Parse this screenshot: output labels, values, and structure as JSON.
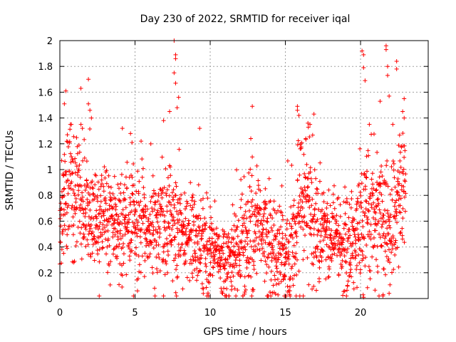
{
  "chart_data": {
    "type": "scatter",
    "title": "Day 230 of 2022, SRMTID for receiver iqal",
    "xlabel": "GPS time / hours",
    "ylabel": "SRMTID / TECUs",
    "xlim": [
      0,
      24.5
    ],
    "ylim": [
      0,
      2
    ],
    "xticks": [
      0,
      5,
      10,
      15,
      20
    ],
    "xtick_labels": [
      "0",
      "5",
      "10",
      "15",
      "20"
    ],
    "yticks": [
      0,
      0.2,
      0.4,
      0.6,
      0.8,
      1,
      1.2,
      1.4,
      1.6,
      1.8,
      2
    ],
    "ytick_labels": [
      "0",
      "0.2",
      "0.4",
      "0.6",
      "0.8",
      "1",
      "1.2",
      "1.4",
      "1.6",
      "1.8",
      "2"
    ],
    "grid": true,
    "marker": "+",
    "series_color": "#ff0000",
    "profile": {
      "hours": [
        0.0,
        0.5,
        1.0,
        1.5,
        2.0,
        2.5,
        3.0,
        3.5,
        4.0,
        4.5,
        5.0,
        5.5,
        6.0,
        6.5,
        7.0,
        7.5,
        8.0,
        8.5,
        9.0,
        9.5,
        10.0,
        10.5,
        11.0,
        11.5,
        12.0,
        12.5,
        13.0,
        13.5,
        14.0,
        14.5,
        15.0,
        15.5,
        16.0,
        16.5,
        17.0,
        17.5,
        18.0,
        18.5,
        19.0,
        19.5,
        20.0,
        20.5,
        21.0,
        21.5,
        22.0,
        22.5,
        23.0
      ],
      "center": [
        0.55,
        0.85,
        0.8,
        0.75,
        0.65,
        0.55,
        0.6,
        0.55,
        0.6,
        0.55,
        0.6,
        0.5,
        0.55,
        0.5,
        0.55,
        0.6,
        0.5,
        0.45,
        0.5,
        0.4,
        0.38,
        0.3,
        0.25,
        0.3,
        0.4,
        0.45,
        0.5,
        0.45,
        0.4,
        0.35,
        0.3,
        0.45,
        0.7,
        0.75,
        0.55,
        0.5,
        0.45,
        0.4,
        0.4,
        0.45,
        0.55,
        0.6,
        0.65,
        0.55,
        0.6,
        0.75,
        0.85
      ],
      "spread": [
        0.2,
        0.25,
        0.25,
        0.25,
        0.2,
        0.18,
        0.2,
        0.2,
        0.2,
        0.18,
        0.2,
        0.18,
        0.2,
        0.2,
        0.25,
        0.22,
        0.2,
        0.15,
        0.2,
        0.18,
        0.18,
        0.15,
        0.15,
        0.18,
        0.22,
        0.25,
        0.25,
        0.2,
        0.2,
        0.2,
        0.2,
        0.25,
        0.3,
        0.3,
        0.2,
        0.18,
        0.18,
        0.15,
        0.18,
        0.2,
        0.25,
        0.3,
        0.3,
        0.3,
        0.28,
        0.3,
        0.3
      ],
      "samples_per_hour": 90
    },
    "highlights": [
      {
        "x": 0.3,
        "y": 1.51
      },
      {
        "x": 0.4,
        "y": 1.61
      },
      {
        "x": 0.5,
        "y": 1.27
      },
      {
        "x": 1.4,
        "y": 1.63
      },
      {
        "x": 1.5,
        "y": 1.32
      },
      {
        "x": 1.9,
        "y": 1.7
      },
      {
        "x": 1.9,
        "y": 1.51
      },
      {
        "x": 2.0,
        "y": 1.46
      },
      {
        "x": 2.1,
        "y": 1.4
      },
      {
        "x": 4.7,
        "y": 1.28
      },
      {
        "x": 4.8,
        "y": 1.21
      },
      {
        "x": 6.9,
        "y": 1.38
      },
      {
        "x": 7.3,
        "y": 1.45
      },
      {
        "x": 7.6,
        "y": 2.0
      },
      {
        "x": 7.7,
        "y": 1.89
      },
      {
        "x": 7.7,
        "y": 1.86
      },
      {
        "x": 7.6,
        "y": 1.75
      },
      {
        "x": 7.7,
        "y": 1.67
      },
      {
        "x": 7.9,
        "y": 1.56
      },
      {
        "x": 7.8,
        "y": 1.48
      },
      {
        "x": 9.3,
        "y": 1.32
      },
      {
        "x": 12.8,
        "y": 1.49
      },
      {
        "x": 12.7,
        "y": 1.24
      },
      {
        "x": 15.8,
        "y": 1.49
      },
      {
        "x": 15.8,
        "y": 1.46
      },
      {
        "x": 15.9,
        "y": 1.42
      },
      {
        "x": 16.5,
        "y": 1.36
      },
      {
        "x": 16.9,
        "y": 1.43
      },
      {
        "x": 20.1,
        "y": 1.92
      },
      {
        "x": 20.2,
        "y": 1.89
      },
      {
        "x": 20.2,
        "y": 1.79
      },
      {
        "x": 20.3,
        "y": 1.69
      },
      {
        "x": 21.7,
        "y": 1.96
      },
      {
        "x": 21.7,
        "y": 1.93
      },
      {
        "x": 21.8,
        "y": 1.8
      },
      {
        "x": 21.8,
        "y": 1.73
      },
      {
        "x": 21.9,
        "y": 1.57
      },
      {
        "x": 21.3,
        "y": 1.53
      },
      {
        "x": 22.4,
        "y": 1.84
      },
      {
        "x": 22.4,
        "y": 1.78
      },
      {
        "x": 22.9,
        "y": 1.55
      },
      {
        "x": 22.8,
        "y": 1.45
      },
      {
        "x": 22.9,
        "y": 1.4
      },
      {
        "x": 20.2,
        "y": 0.01
      },
      {
        "x": 21.5,
        "y": 0.03
      },
      {
        "x": 21.9,
        "y": 0.04
      },
      {
        "x": 12.3,
        "y": 0.05
      },
      {
        "x": 15.3,
        "y": 0.06
      },
      {
        "x": 10.9,
        "y": 0.08
      }
    ]
  }
}
